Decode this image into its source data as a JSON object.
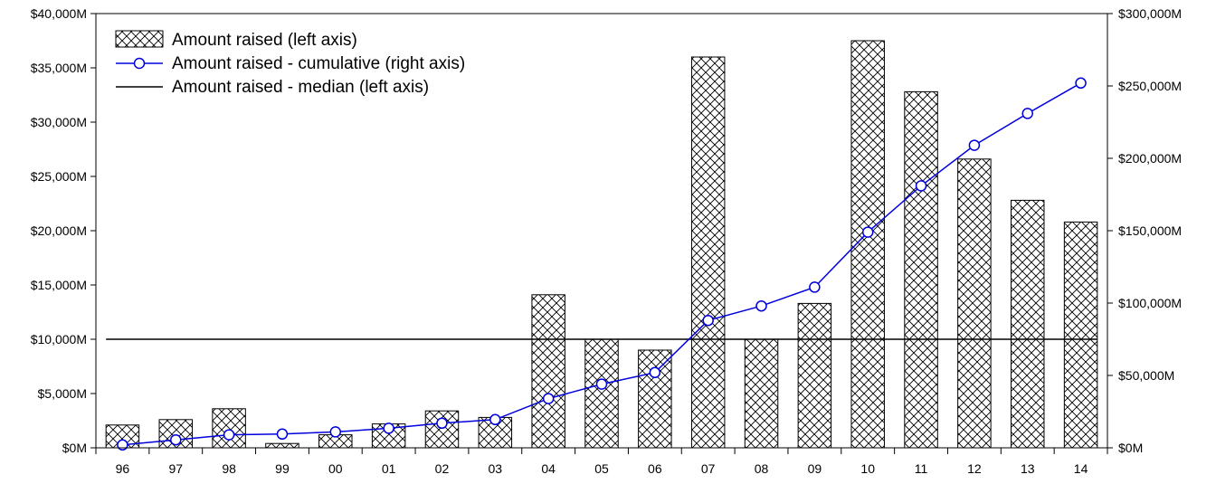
{
  "chart_data": {
    "type": "bar",
    "title": "",
    "xlabel": "",
    "ylabel": "",
    "categories": [
      "96",
      "97",
      "98",
      "99",
      "00",
      "01",
      "02",
      "03",
      "04",
      "05",
      "06",
      "07",
      "08",
      "09",
      "10",
      "11",
      "12",
      "13",
      "14"
    ],
    "series": [
      {
        "name": "Amount raised (left axis)",
        "kind": "bar",
        "axis": "left",
        "values": [
          2100,
          2600,
          3600,
          400,
          1200,
          2200,
          3400,
          2800,
          14100,
          10000,
          9000,
          36000,
          10000,
          13300,
          37500,
          32800,
          26600,
          22800,
          20800
        ]
      },
      {
        "name": "Amount raised - cumulative (right axis)",
        "kind": "line",
        "axis": "right",
        "color": "#0000dd",
        "values": [
          2000,
          5500,
          9000,
          9500,
          11000,
          13500,
          17000,
          19500,
          34000,
          44000,
          52000,
          88000,
          98000,
          111000,
          149000,
          181000,
          209000,
          231000,
          252000
        ]
      },
      {
        "name": "Amount raised - median (left axis)",
        "kind": "hline",
        "axis": "left",
        "color": "#000000",
        "value": 10000
      }
    ],
    "ylim_left": [
      0,
      40000
    ],
    "ylim_right": [
      0,
      300000
    ],
    "left_ticks": [
      "$0M",
      "$5,000M",
      "$10,000M",
      "$15,000M",
      "$20,000M",
      "$25,000M",
      "$30,000M",
      "$35,000M",
      "$40,000M"
    ],
    "right_ticks": [
      "$0M",
      "$50,000M",
      "$100,000M",
      "$150,000M",
      "$200,000M",
      "$250,000M",
      "$300,000M"
    ],
    "grid": false,
    "legend_position": "top-left"
  }
}
